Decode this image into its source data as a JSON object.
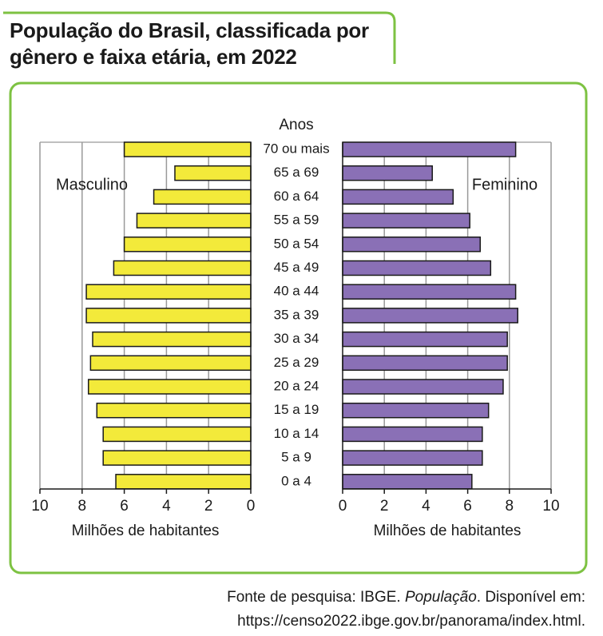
{
  "chart_data": {
    "type": "pyramid",
    "title": "População do Brasil, classificada por gênero e faixa etária, em 2022",
    "category_label": "Anos",
    "xlabel": "Milhões de habitantes",
    "categories": [
      "70 ou mais",
      "65 a 69",
      "60 a 64",
      "55 a 59",
      "50 a 54",
      "45 a 49",
      "40 a 44",
      "35 a 39",
      "30 a 34",
      "25 a 29",
      "20 a 24",
      "15 a 19",
      "10 a 14",
      "5 a 9",
      "0 a 4"
    ],
    "series": [
      {
        "name": "Masculino",
        "color": "#f3ea3a",
        "values": [
          6.0,
          3.6,
          4.6,
          5.4,
          6.0,
          6.5,
          7.8,
          7.8,
          7.5,
          7.6,
          7.7,
          7.3,
          7.0,
          7.0,
          6.4
        ]
      },
      {
        "name": "Feminino",
        "color": "#8a70b6",
        "values": [
          8.3,
          4.3,
          5.3,
          6.1,
          6.6,
          7.1,
          8.3,
          8.4,
          7.9,
          7.9,
          7.7,
          7.0,
          6.7,
          6.7,
          6.2
        ]
      }
    ],
    "xlim": [
      0,
      10
    ],
    "xticks": [
      0,
      2,
      4,
      6,
      8,
      10
    ],
    "grid": true,
    "source": {
      "text": "Fonte de pesquisa: IBGE. ",
      "work": "População",
      "after": ". Disponível em:",
      "url": "https://censo2022.ibge.gov.br/panorama/index.html."
    }
  }
}
